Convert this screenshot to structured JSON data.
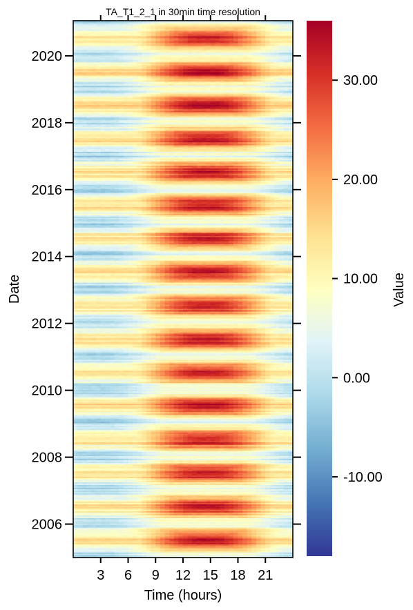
{
  "chart_data": {
    "type": "heatmap",
    "title": "TA_T1_2_1 in 30min time resolution",
    "xlabel": "Time (hours)",
    "ylabel": "Date",
    "x_ticks": [
      3,
      6,
      9,
      12,
      15,
      18,
      21
    ],
    "x_tick_labels": [
      "3",
      "6",
      "9",
      "12",
      "15",
      "18",
      "21"
    ],
    "xlim": [
      0,
      24
    ],
    "resolution_minutes": 30,
    "y_ticks": [
      2006,
      2008,
      2010,
      2012,
      2014,
      2016,
      2018,
      2020
    ],
    "y_tick_labels": [
      "2006",
      "2008",
      "2010",
      "2012",
      "2014",
      "2016",
      "2018",
      "2020"
    ],
    "ylim": [
      2005.0,
      2021.05
    ],
    "colorbar": {
      "label": "Value",
      "range": [
        -18,
        36
      ],
      "ticks": [
        -10,
        0,
        10,
        20,
        30
      ],
      "tick_labels": [
        "-10.00",
        "0.00",
        "10.00",
        "20.00",
        "30.00"
      ],
      "colormap": "RdYlBu_r",
      "colors": [
        "#313695",
        "#4575b4",
        "#74add1",
        "#abd9e9",
        "#e0f3f8",
        "#ffffbf",
        "#fee090",
        "#fdae61",
        "#f46d43",
        "#d73027",
        "#a50026"
      ]
    },
    "approx_yearly_profile": {
      "winter_night_min": -4,
      "summer_afternoon_peak": 32,
      "diurnal_amplitude_summer": 11,
      "peak_hour": 14.5
    },
    "grid": false
  }
}
